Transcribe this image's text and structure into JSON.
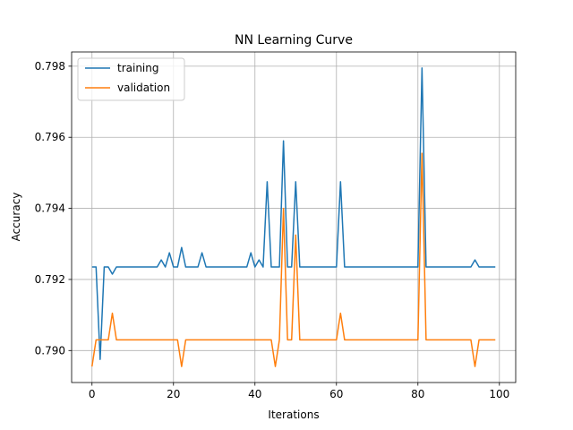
{
  "chart_data": {
    "type": "line",
    "title": "NN Learning Curve",
    "xlabel": "Iterations",
    "ylabel": "Accuracy",
    "xlim": [
      -5,
      104
    ],
    "ylim": [
      0.7891,
      0.7984
    ],
    "xticks": [
      0,
      20,
      40,
      60,
      80,
      100
    ],
    "yticks": [
      0.79,
      0.792,
      0.794,
      0.796,
      0.798
    ],
    "grid": true,
    "legend": "top-left",
    "series": [
      {
        "name": "training",
        "color": "#1f77b4",
        "values": [
          0.79235,
          0.79235,
          0.78975,
          0.79235,
          0.79235,
          0.79215,
          0.79235,
          0.79235,
          0.79235,
          0.79235,
          0.79235,
          0.79235,
          0.79235,
          0.79235,
          0.79235,
          0.79235,
          0.79235,
          0.79255,
          0.79235,
          0.79275,
          0.79235,
          0.79235,
          0.7929,
          0.79235,
          0.79235,
          0.79235,
          0.79235,
          0.79275,
          0.79235,
          0.79235,
          0.79235,
          0.79235,
          0.79235,
          0.79235,
          0.79235,
          0.79235,
          0.79235,
          0.79235,
          0.79235,
          0.79275,
          0.79235,
          0.79255,
          0.79235,
          0.79475,
          0.79235,
          0.79235,
          0.79235,
          0.7959,
          0.79235,
          0.79235,
          0.79475,
          0.79235,
          0.79235,
          0.79235,
          0.79235,
          0.79235,
          0.79235,
          0.79235,
          0.79235,
          0.79235,
          0.79235,
          0.79475,
          0.79235,
          0.79235,
          0.79235,
          0.79235,
          0.79235,
          0.79235,
          0.79235,
          0.79235,
          0.79235,
          0.79235,
          0.79235,
          0.79235,
          0.79235,
          0.79235,
          0.79235,
          0.79235,
          0.79235,
          0.79235,
          0.79235,
          0.79795,
          0.79235,
          0.79235,
          0.79235,
          0.79235,
          0.79235,
          0.79235,
          0.79235,
          0.79235,
          0.79235,
          0.79235,
          0.79235,
          0.79235,
          0.79255,
          0.79235,
          0.79235,
          0.79235,
          0.79235,
          0.79235
        ]
      },
      {
        "name": "validation",
        "color": "#ff7f0e",
        "values": [
          0.78955,
          0.7903,
          0.7903,
          0.7903,
          0.7903,
          0.79105,
          0.7903,
          0.7903,
          0.7903,
          0.7903,
          0.7903,
          0.7903,
          0.7903,
          0.7903,
          0.7903,
          0.7903,
          0.7903,
          0.7903,
          0.7903,
          0.7903,
          0.7903,
          0.7903,
          0.78955,
          0.7903,
          0.7903,
          0.7903,
          0.7903,
          0.7903,
          0.7903,
          0.7903,
          0.7903,
          0.7903,
          0.7903,
          0.7903,
          0.7903,
          0.7903,
          0.7903,
          0.7903,
          0.7903,
          0.7903,
          0.7903,
          0.7903,
          0.7903,
          0.7903,
          0.7903,
          0.78955,
          0.7903,
          0.794,
          0.7903,
          0.7903,
          0.79325,
          0.7903,
          0.7903,
          0.7903,
          0.7903,
          0.7903,
          0.7903,
          0.7903,
          0.7903,
          0.7903,
          0.7903,
          0.79105,
          0.7903,
          0.7903,
          0.7903,
          0.7903,
          0.7903,
          0.7903,
          0.7903,
          0.7903,
          0.7903,
          0.7903,
          0.7903,
          0.7903,
          0.7903,
          0.7903,
          0.7903,
          0.7903,
          0.7903,
          0.7903,
          0.7903,
          0.79555,
          0.7903,
          0.7903,
          0.7903,
          0.7903,
          0.7903,
          0.7903,
          0.7903,
          0.7903,
          0.7903,
          0.7903,
          0.7903,
          0.7903,
          0.78955,
          0.7903,
          0.7903,
          0.7903,
          0.7903,
          0.7903
        ]
      }
    ]
  }
}
